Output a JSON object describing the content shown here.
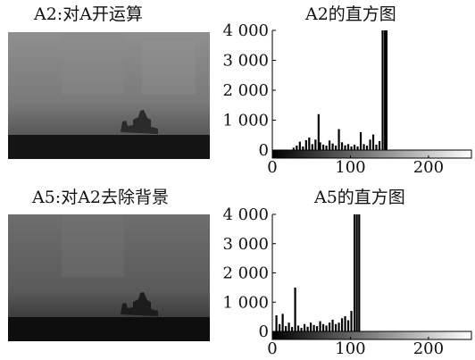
{
  "panels": [
    {
      "title": "A2:对A开运算"
    },
    {
      "title": "A5:对A2去除背景"
    }
  ],
  "chart_data": [
    {
      "type": "bar",
      "title": "A2的直方图",
      "xlabel": "",
      "ylabel": "",
      "xlim": [
        0,
        255
      ],
      "ylim": [
        0,
        4000
      ],
      "xticks": [
        0,
        100,
        200
      ],
      "yticks": [
        0,
        1000,
        2000,
        3000,
        4000
      ],
      "xtick_labels": [
        "0",
        "100",
        "200"
      ],
      "ytick_labels": [
        "0",
        "1 000",
        "2 000",
        "3 000",
        "4 000"
      ],
      "grid": false,
      "colorbar": "grayscale",
      "bars": [
        {
          "x": 26,
          "y": 80
        },
        {
          "x": 30,
          "y": 150
        },
        {
          "x": 34,
          "y": 280
        },
        {
          "x": 38,
          "y": 120
        },
        {
          "x": 42,
          "y": 330
        },
        {
          "x": 46,
          "y": 420
        },
        {
          "x": 50,
          "y": 200
        },
        {
          "x": 54,
          "y": 350
        },
        {
          "x": 58,
          "y": 1200
        },
        {
          "x": 60,
          "y": 260
        },
        {
          "x": 64,
          "y": 180
        },
        {
          "x": 68,
          "y": 150
        },
        {
          "x": 72,
          "y": 320
        },
        {
          "x": 76,
          "y": 220
        },
        {
          "x": 80,
          "y": 150
        },
        {
          "x": 84,
          "y": 700
        },
        {
          "x": 88,
          "y": 260
        },
        {
          "x": 92,
          "y": 160
        },
        {
          "x": 96,
          "y": 200
        },
        {
          "x": 100,
          "y": 120
        },
        {
          "x": 104,
          "y": 180
        },
        {
          "x": 108,
          "y": 120
        },
        {
          "x": 112,
          "y": 600
        },
        {
          "x": 116,
          "y": 200
        },
        {
          "x": 120,
          "y": 150
        },
        {
          "x": 124,
          "y": 350
        },
        {
          "x": 128,
          "y": 520
        },
        {
          "x": 132,
          "y": 180
        },
        {
          "x": 136,
          "y": 300
        },
        {
          "x": 140,
          "y": 4000
        },
        {
          "x": 143,
          "y": 4000
        },
        {
          "x": 145,
          "y": 4000
        }
      ]
    },
    {
      "type": "bar",
      "title": "A5的直方图",
      "xlabel": "",
      "ylabel": "",
      "xlim": [
        0,
        255
      ],
      "ylim": [
        0,
        4000
      ],
      "xticks": [
        0,
        100,
        200
      ],
      "yticks": [
        0,
        1000,
        2000,
        3000,
        4000
      ],
      "xtick_labels": [
        "0",
        "100",
        "200"
      ],
      "ytick_labels": [
        "0",
        "1 000",
        "2 000",
        "3 000",
        "4 000"
      ],
      "grid": false,
      "colorbar": "grayscale",
      "bars": [
        {
          "x": 4,
          "y": 550
        },
        {
          "x": 8,
          "y": 250
        },
        {
          "x": 12,
          "y": 600
        },
        {
          "x": 16,
          "y": 180
        },
        {
          "x": 20,
          "y": 300
        },
        {
          "x": 24,
          "y": 150
        },
        {
          "x": 28,
          "y": 1500
        },
        {
          "x": 32,
          "y": 200
        },
        {
          "x": 36,
          "y": 120
        },
        {
          "x": 40,
          "y": 250
        },
        {
          "x": 44,
          "y": 160
        },
        {
          "x": 48,
          "y": 300
        },
        {
          "x": 52,
          "y": 220
        },
        {
          "x": 56,
          "y": 180
        },
        {
          "x": 60,
          "y": 350
        },
        {
          "x": 64,
          "y": 250
        },
        {
          "x": 68,
          "y": 200
        },
        {
          "x": 72,
          "y": 300
        },
        {
          "x": 76,
          "y": 400
        },
        {
          "x": 80,
          "y": 250
        },
        {
          "x": 84,
          "y": 300
        },
        {
          "x": 88,
          "y": 450
        },
        {
          "x": 92,
          "y": 520
        },
        {
          "x": 96,
          "y": 380
        },
        {
          "x": 100,
          "y": 700
        },
        {
          "x": 104,
          "y": 4000
        },
        {
          "x": 107,
          "y": 4000
        },
        {
          "x": 110,
          "y": 4000
        }
      ]
    }
  ]
}
